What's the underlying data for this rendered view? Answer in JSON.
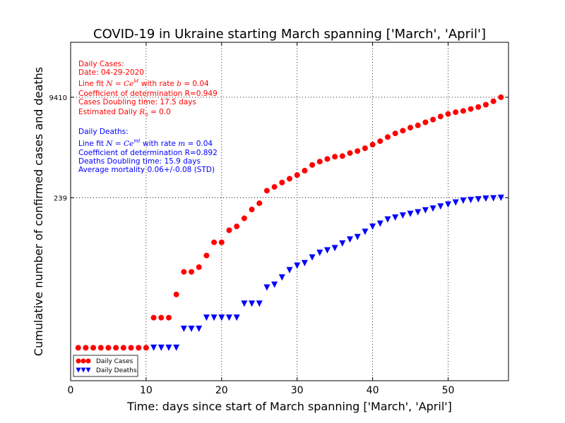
{
  "chart_data": {
    "type": "scatter",
    "title": "COVID-19 in Ukraine starting March spanning ['March', 'April']",
    "xlabel": "Time: days since start of March spanning ['March', 'April']",
    "ylabel": "Cumulative number of confirmed cases and deaths",
    "x_ticks": [
      0,
      10,
      20,
      30,
      40,
      50
    ],
    "xlim": [
      0,
      58
    ],
    "y_scale": "log",
    "ylim": [
      0.3,
      70000
    ],
    "y_ticks": [
      239,
      9410
    ],
    "grid": true,
    "legend_position": "lower-left",
    "series": [
      {
        "name": "Daily Cases",
        "color": "#ff0000",
        "marker": "circle",
        "x": [
          1,
          2,
          3,
          4,
          5,
          6,
          7,
          8,
          9,
          10,
          11,
          12,
          13,
          14,
          15,
          16,
          17,
          18,
          19,
          20,
          21,
          22,
          23,
          24,
          25,
          26,
          27,
          28,
          29,
          30,
          31,
          32,
          33,
          34,
          35,
          36,
          37,
          38,
          39,
          40,
          41,
          42,
          43,
          44,
          45,
          46,
          47,
          48,
          49,
          50,
          51,
          52,
          53,
          54,
          55,
          56,
          57
        ],
        "values": [
          1,
          1,
          1,
          1,
          1,
          1,
          1,
          1,
          1,
          1,
          3,
          3,
          3,
          7,
          16,
          16,
          19,
          29,
          47,
          47,
          73,
          84,
          113,
          156,
          196,
          310,
          356,
          418,
          480,
          549,
          645,
          794,
          897,
          987,
          1072,
          1096,
          1225,
          1319,
          1462,
          1668,
          1892,
          2203,
          2511,
          2777,
          3102,
          3372,
          3764,
          4161,
          4662,
          5106,
          5449,
          5710,
          6125,
          6592,
          7170,
          8125,
          9410
        ]
      },
      {
        "name": "Daily Deaths",
        "color": "#0000ff",
        "marker": "triangle-down",
        "x": [
          11,
          12,
          13,
          14,
          15,
          16,
          17,
          18,
          19,
          20,
          21,
          22,
          23,
          24,
          25,
          26,
          27,
          28,
          29,
          30,
          31,
          32,
          33,
          34,
          35,
          36,
          37,
          38,
          39,
          40,
          41,
          42,
          43,
          44,
          45,
          46,
          47,
          48,
          49,
          50,
          51,
          52,
          53,
          54,
          55,
          56,
          57
        ],
        "values": [
          1,
          1,
          1,
          1,
          2,
          2,
          2,
          3,
          3,
          3,
          3,
          3,
          5,
          5,
          5,
          9,
          10,
          13,
          17,
          20,
          22,
          27,
          32,
          35,
          38,
          45,
          52,
          57,
          69,
          83,
          93,
          108,
          116,
          125,
          133,
          141,
          151,
          161,
          174,
          187,
          201,
          215,
          220,
          226,
          232,
          235,
          239
        ]
      }
    ]
  },
  "annotations": {
    "cases_block": {
      "line1": "Daily Cases:",
      "line2": "Date: 04-29-2020",
      "line3_a": "Line fit ",
      "line3_math": "N = Ce",
      "line3_sup": "bt",
      "line3_b": " with rate ",
      "line3_rate_sym": "b",
      "line3_c": " = 0.04",
      "line4": "Coefficient of determination R=0.949",
      "line5": "Cases Doubling time: 17.5 days",
      "line6_a": "Estimated Daily ",
      "line6_sym": "R",
      "line6_sub": "0",
      "line6_b": " = 0.0"
    },
    "deaths_block": {
      "line1": "Daily Deaths:",
      "line2_a": "Line fit ",
      "line2_math": "N = Ce",
      "line2_sup": "mt",
      "line2_b": " with rate ",
      "line2_rate_sym": "m",
      "line2_c": " = 0.04",
      "line3": "Coefficient of determination R=0.892",
      "line4": "Deaths Doubling time: 15.9 days",
      "line5": "Average mortality 0.06+/-0.08 (STD)"
    }
  },
  "colors": {
    "cases": "#ff0000",
    "deaths": "#0000ff",
    "axis": "#000000",
    "grid": "#000000"
  }
}
